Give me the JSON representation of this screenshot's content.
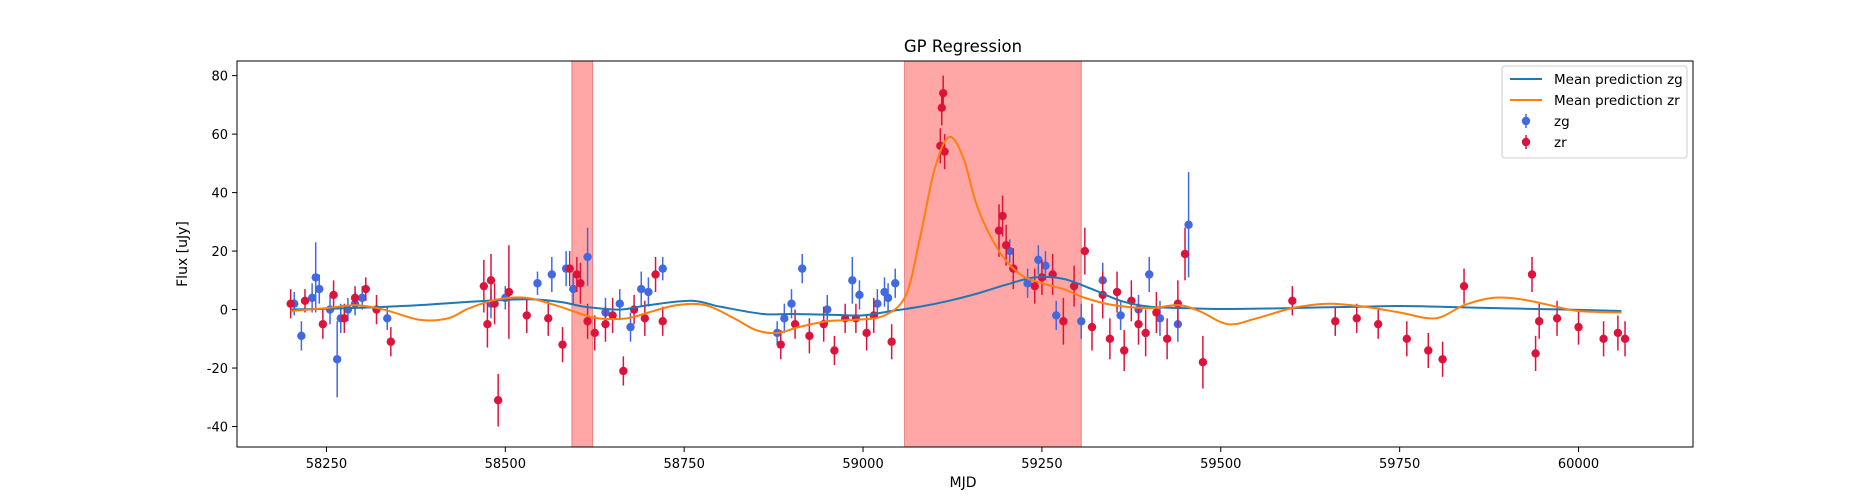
{
  "chart_data": {
    "type": "scatter",
    "title": "GP Regression",
    "xlabel": "MJD",
    "ylabel": "Flux [uJy]",
    "xlim": [
      58125,
      60160
    ],
    "ylim": [
      -47,
      85
    ],
    "xticks": [
      58250,
      58500,
      58750,
      59000,
      59250,
      59500,
      59750,
      60000
    ],
    "yticks": [
      -40,
      -20,
      0,
      20,
      40,
      60,
      80
    ],
    "grid": false,
    "legend_position": "top-right",
    "shaded_regions": [
      {
        "x0": 58593,
        "x1": 58622,
        "color": "#ff6b6b"
      },
      {
        "x0": 59058,
        "x1": 59305,
        "color": "#ff6b6b"
      }
    ],
    "series": [
      {
        "name": "Mean prediction zg",
        "kind": "line",
        "color": "#1f77b4",
        "x": [
          58200,
          58260,
          58320,
          58380,
          58440,
          58490,
          58540,
          58580,
          58610,
          58660,
          58700,
          58760,
          58800,
          58860,
          58900,
          58960,
          59000,
          59040,
          59080,
          59120,
          59160,
          59200,
          59240,
          59280,
          59320,
          59360,
          59400,
          59450,
          59500,
          59550,
          59600,
          59650,
          59700,
          59750,
          59800,
          59860,
          59920,
          59980,
          60060
        ],
        "values": [
          0.0,
          0.3,
          0.8,
          1.5,
          2.5,
          3.2,
          3.5,
          2.5,
          1.0,
          0.0,
          1.5,
          3.0,
          1.0,
          -1.5,
          -1.5,
          -1.8,
          -2.0,
          -0.5,
          1.0,
          3.0,
          5.5,
          8.5,
          11.0,
          10.5,
          7.0,
          3.0,
          1.0,
          0.5,
          0.2,
          0.3,
          0.5,
          0.8,
          1.0,
          1.2,
          1.0,
          0.6,
          0.3,
          0.0,
          -0.5
        ]
      },
      {
        "name": "Mean prediction zr",
        "kind": "line",
        "color": "#ff7f0e",
        "x": [
          58200,
          58250,
          58290,
          58330,
          58380,
          58420,
          58450,
          58490,
          58530,
          58570,
          58600,
          58630,
          58670,
          58700,
          58740,
          58780,
          58820,
          58850,
          58880,
          58910,
          58950,
          58990,
          59030,
          59060,
          59080,
          59100,
          59120,
          59140,
          59160,
          59190,
          59220,
          59250,
          59280,
          59310,
          59350,
          59400,
          59440,
          59470,
          59510,
          59550,
          59600,
          59650,
          59700,
          59750,
          59800,
          59840,
          59880,
          59920,
          59960,
          60000,
          60060
        ],
        "values": [
          -0.5,
          0.5,
          1.5,
          0.0,
          -3.5,
          -3.0,
          0.5,
          3.5,
          4.0,
          1.5,
          -1.0,
          -3.0,
          -3.0,
          -1.0,
          1.5,
          1.5,
          -3.0,
          -7.0,
          -8.0,
          -6.0,
          -4.0,
          -3.5,
          -2.0,
          5.0,
          25.0,
          48.0,
          59.0,
          52.0,
          35.0,
          20.0,
          12.0,
          9.0,
          7.0,
          4.0,
          1.5,
          0.5,
          1.5,
          -0.5,
          -5.0,
          -3.0,
          0.5,
          2.0,
          1.0,
          -1.0,
          -3.0,
          1.5,
          4.0,
          3.5,
          1.5,
          -0.5,
          -1.0
        ]
      },
      {
        "name": "zg",
        "kind": "errorbar",
        "color": "#4169e1",
        "x": [
          58205,
          58215,
          58230,
          58235,
          58240,
          58255,
          58265,
          58270,
          58280,
          58290,
          58300,
          58335,
          58480,
          58500,
          58545,
          58565,
          58585,
          58595,
          58615,
          58640,
          58660,
          58675,
          58690,
          58700,
          58720,
          58880,
          58890,
          58900,
          58915,
          58950,
          58985,
          58995,
          59020,
          59030,
          59035,
          59045,
          59205,
          59230,
          59245,
          59255,
          59270,
          59305,
          59335,
          59360,
          59385,
          59400,
          59415,
          59440,
          59455
        ],
        "values": [
          2,
          -9,
          4,
          11,
          7,
          0,
          -17,
          -3,
          0,
          2,
          4,
          -3,
          2,
          4,
          9,
          12,
          14,
          7,
          18,
          -1,
          2,
          -6,
          7,
          6,
          14,
          -8,
          -3,
          2,
          14,
          0,
          10,
          5,
          2,
          6,
          4,
          9,
          20,
          9,
          17,
          15,
          -2,
          -4,
          10,
          -2,
          0,
          12,
          -3,
          -5,
          29
        ],
        "errors": [
          4,
          5,
          5,
          12,
          5,
          5,
          13,
          5,
          4,
          4,
          4,
          4,
          5,
          4,
          4,
          6,
          6,
          5,
          10,
          5,
          5,
          5,
          6,
          5,
          4,
          4,
          5,
          5,
          5,
          5,
          8,
          5,
          5,
          5,
          5,
          5,
          4,
          5,
          5,
          5,
          5,
          6,
          6,
          5,
          5,
          6,
          6,
          6,
          18
        ]
      },
      {
        "name": "zr",
        "kind": "errorbar",
        "color": "#dc143c",
        "x": [
          58200,
          58220,
          58245,
          58260,
          58275,
          58290,
          58305,
          58320,
          58340,
          58470,
          58475,
          58480,
          58485,
          58490,
          58505,
          58530,
          58560,
          58580,
          58590,
          58600,
          58605,
          58615,
          58625,
          58640,
          58650,
          58665,
          58680,
          58695,
          58710,
          58720,
          58885,
          58905,
          58925,
          58945,
          58960,
          58975,
          58990,
          59005,
          59015,
          59040,
          59108,
          59110,
          59112,
          59114,
          59190,
          59195,
          59200,
          59210,
          59240,
          59250,
          59265,
          59280,
          59295,
          59310,
          59320,
          59335,
          59345,
          59355,
          59365,
          59375,
          59385,
          59395,
          59410,
          59425,
          59440,
          59450,
          59475,
          59600,
          59660,
          59690,
          59720,
          59760,
          59790,
          59810,
          59840,
          59935,
          59940,
          59945,
          59970,
          60000,
          60035,
          60055,
          60065
        ],
        "values": [
          2,
          3,
          -5,
          5,
          -3,
          4,
          7,
          0,
          -11,
          8,
          -5,
          10,
          2,
          -31,
          6,
          -2,
          -3,
          -12,
          14,
          12,
          9,
          -4,
          -8,
          -5,
          -2,
          -21,
          0,
          -3,
          12,
          -4,
          -12,
          -5,
          -9,
          -5,
          -14,
          -3,
          -3,
          -8,
          -2,
          -11,
          56,
          69,
          74,
          54,
          27,
          32,
          22,
          14,
          8,
          11,
          12,
          -4,
          8,
          20,
          -6,
          5,
          -10,
          6,
          -14,
          3,
          -5,
          -8,
          -1,
          -10,
          2,
          19,
          -18,
          3,
          -4,
          -3,
          -5,
          -10,
          -14,
          -17,
          8,
          12,
          -15,
          -4,
          -3,
          -6,
          -10,
          -8,
          -10
        ],
        "errors": [
          5,
          4,
          5,
          5,
          5,
          4,
          4,
          5,
          5,
          9,
          8,
          9,
          7,
          9,
          16,
          6,
          6,
          6,
          6,
          6,
          7,
          6,
          6,
          6,
          6,
          5,
          5,
          6,
          6,
          5,
          5,
          5,
          6,
          6,
          5,
          5,
          5,
          6,
          6,
          6,
          6,
          6,
          6,
          6,
          9,
          7,
          7,
          7,
          6,
          6,
          7,
          8,
          7,
          8,
          8,
          8,
          7,
          7,
          7,
          7,
          7,
          8,
          7,
          7,
          8,
          9,
          9,
          5,
          5,
          5,
          5,
          6,
          6,
          6,
          6,
          6,
          6,
          6,
          6,
          6,
          6,
          6,
          6
        ]
      }
    ]
  }
}
